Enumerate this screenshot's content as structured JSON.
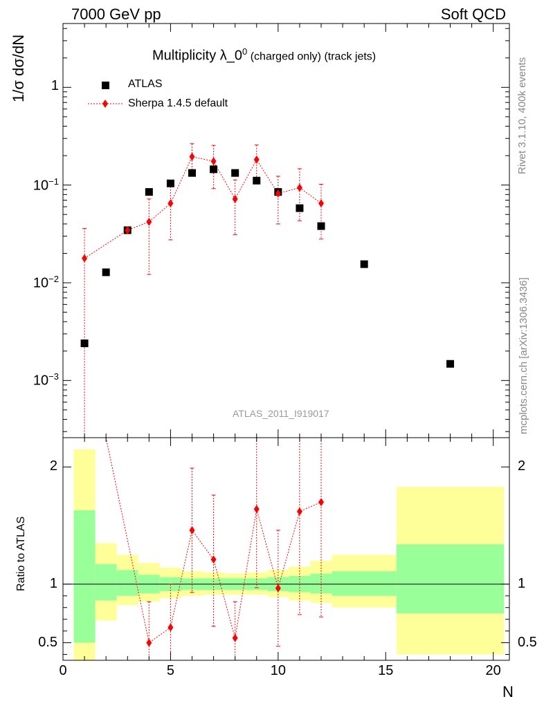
{
  "header": {
    "left": "7000 GeV pp",
    "right": "Soft QCD"
  },
  "side_labels": {
    "rivet": "Rivet 3.1.10,  400k events",
    "mcplots": "mcplots.cern.ch [arXiv:1306.3436]"
  },
  "chart_data": {
    "type": "scatter",
    "title_main": "Multiplicity λ_0",
    "title_sup": "0",
    "title_sub": " (charged only) (track jets)",
    "analysis_tag": "ATLAS_2011_I919017",
    "ylabel": "1/σ dσ/dN",
    "ratio_ylabel": "Ratio to ATLAS",
    "xlabel": "N",
    "xlim": [
      0,
      20.75
    ],
    "ylim_log": [
      0.00026,
      4.5
    ],
    "ratio_ylim": [
      0.35,
      2.25
    ],
    "x_ticks": [
      {
        "v": 0,
        "label": "0"
      },
      {
        "v": 5,
        "label": "5"
      },
      {
        "v": 10,
        "label": "10"
      },
      {
        "v": 15,
        "label": "15"
      },
      {
        "v": 20,
        "label": "20"
      }
    ],
    "y_ticks": [
      {
        "v": 0.001,
        "base": "10",
        "exp": "−3"
      },
      {
        "v": 0.01,
        "base": "10",
        "exp": "−2"
      },
      {
        "v": 0.1,
        "base": "10",
        "exp": "−1"
      },
      {
        "v": 1,
        "base": "1",
        "exp": ""
      }
    ],
    "ratio_ticks": [
      {
        "v": 0.5,
        "label": "0.5"
      },
      {
        "v": 1,
        "label": "1"
      },
      {
        "v": 2,
        "label": "2"
      }
    ],
    "series": [
      {
        "name": "ATLAS",
        "color": "#000000",
        "marker": "square",
        "points": [
          {
            "x": 1,
            "y": 0.0024
          },
          {
            "x": 2,
            "y": 0.0128
          },
          {
            "x": 3,
            "y": 0.0345
          },
          {
            "x": 4,
            "y": 0.085
          },
          {
            "x": 5,
            "y": 0.104
          },
          {
            "x": 6,
            "y": 0.133
          },
          {
            "x": 7,
            "y": 0.145
          },
          {
            "x": 8,
            "y": 0.133
          },
          {
            "x": 9,
            "y": 0.111
          },
          {
            "x": 10,
            "y": 0.085
          },
          {
            "x": 11,
            "y": 0.058
          },
          {
            "x": 12,
            "y": 0.038
          },
          {
            "x": 14,
            "y": 0.0155
          },
          {
            "x": 18,
            "y": 0.00148
          }
        ]
      },
      {
        "name": "Sherpa 1.4.5 default",
        "color": "#ff0000",
        "marker": "diamond",
        "points": [
          {
            "x": 1,
            "y": 0.0178,
            "lo": 1e-05,
            "hi": 0.036
          },
          {
            "x": 3,
            "y": 0.0345,
            "lo": 0.0345,
            "hi": 0.0345
          },
          {
            "x": 4,
            "y": 0.042,
            "lo": 0.0122,
            "hi": 0.072
          },
          {
            "x": 5,
            "y": 0.065,
            "lo": 0.0275,
            "hi": 0.103
          },
          {
            "x": 6,
            "y": 0.195,
            "lo": 0.124,
            "hi": 0.265
          },
          {
            "x": 7,
            "y": 0.175,
            "lo": 0.092,
            "hi": 0.255
          },
          {
            "x": 8,
            "y": 0.072,
            "lo": 0.031,
            "hi": 0.113
          },
          {
            "x": 9,
            "y": 0.182,
            "lo": 0.107,
            "hi": 0.257
          },
          {
            "x": 10,
            "y": 0.082,
            "lo": 0.04,
            "hi": 0.123
          },
          {
            "x": 11,
            "y": 0.094,
            "lo": 0.043,
            "hi": 0.147
          },
          {
            "x": 12,
            "y": 0.065,
            "lo": 0.028,
            "hi": 0.102
          }
        ]
      }
    ],
    "ratio_points": [
      {
        "x": 2,
        "y": 2.6,
        "lo": 2.6,
        "hi": 2.6
      },
      {
        "x": 4,
        "y": 0.5,
        "lo": 0.15,
        "hi": 0.85
      },
      {
        "x": 5,
        "y": 0.63,
        "lo": 0.25,
        "hi": 1.0
      },
      {
        "x": 6,
        "y": 1.46,
        "lo": 0.93,
        "hi": 1.99
      },
      {
        "x": 7,
        "y": 1.21,
        "lo": 0.64,
        "hi": 1.76
      },
      {
        "x": 8,
        "y": 0.54,
        "lo": 0.23,
        "hi": 0.85
      },
      {
        "x": 9,
        "y": 1.64,
        "lo": 0.97,
        "hi": 2.31
      },
      {
        "x": 10,
        "y": 0.965,
        "lo": 0.47,
        "hi": 1.46
      },
      {
        "x": 11,
        "y": 1.62,
        "lo": 0.74,
        "hi": 2.5
      },
      {
        "x": 12,
        "y": 1.7,
        "lo": 0.72,
        "hi": 2.68
      }
    ],
    "ratio_bands": [
      {
        "x0": 0.5,
        "x1": 1.5,
        "green": [
          0.5,
          1.63
        ],
        "yellow": [
          0.35,
          2.15
        ]
      },
      {
        "x0": 1.5,
        "x1": 2.5,
        "green": [
          0.86,
          1.17
        ],
        "yellow": [
          0.69,
          1.35
        ]
      },
      {
        "x0": 2.5,
        "x1": 3.5,
        "green": [
          0.9,
          1.12
        ],
        "yellow": [
          0.82,
          1.25
        ]
      },
      {
        "x0": 3.5,
        "x1": 4.5,
        "green": [
          0.92,
          1.08
        ],
        "yellow": [
          0.85,
          1.18
        ]
      },
      {
        "x0": 4.5,
        "x1": 5.5,
        "green": [
          0.94,
          1.06
        ],
        "yellow": [
          0.88,
          1.14
        ]
      },
      {
        "x0": 5.5,
        "x1": 6.5,
        "green": [
          0.95,
          1.05
        ],
        "yellow": [
          0.9,
          1.11
        ]
      },
      {
        "x0": 6.5,
        "x1": 7.5,
        "green": [
          0.95,
          1.05
        ],
        "yellow": [
          0.91,
          1.1
        ]
      },
      {
        "x0": 7.5,
        "x1": 8.5,
        "green": [
          0.95,
          1.05
        ],
        "yellow": [
          0.91,
          1.09
        ]
      },
      {
        "x0": 8.5,
        "x1": 9.5,
        "green": [
          0.95,
          1.05
        ],
        "yellow": [
          0.91,
          1.1
        ]
      },
      {
        "x0": 9.5,
        "x1": 10.5,
        "green": [
          0.94,
          1.06
        ],
        "yellow": [
          0.89,
          1.12
        ]
      },
      {
        "x0": 10.5,
        "x1": 11.5,
        "green": [
          0.93,
          1.07
        ],
        "yellow": [
          0.86,
          1.15
        ]
      },
      {
        "x0": 11.5,
        "x1": 12.5,
        "green": [
          0.92,
          1.09
        ],
        "yellow": [
          0.84,
          1.2
        ]
      },
      {
        "x0": 12.5,
        "x1": 15.5,
        "green": [
          0.9,
          1.11
        ],
        "yellow": [
          0.8,
          1.25
        ]
      },
      {
        "x0": 15.5,
        "x1": 20.5,
        "green": [
          0.75,
          1.34
        ],
        "yellow": [
          0.4,
          1.83
        ]
      }
    ]
  }
}
